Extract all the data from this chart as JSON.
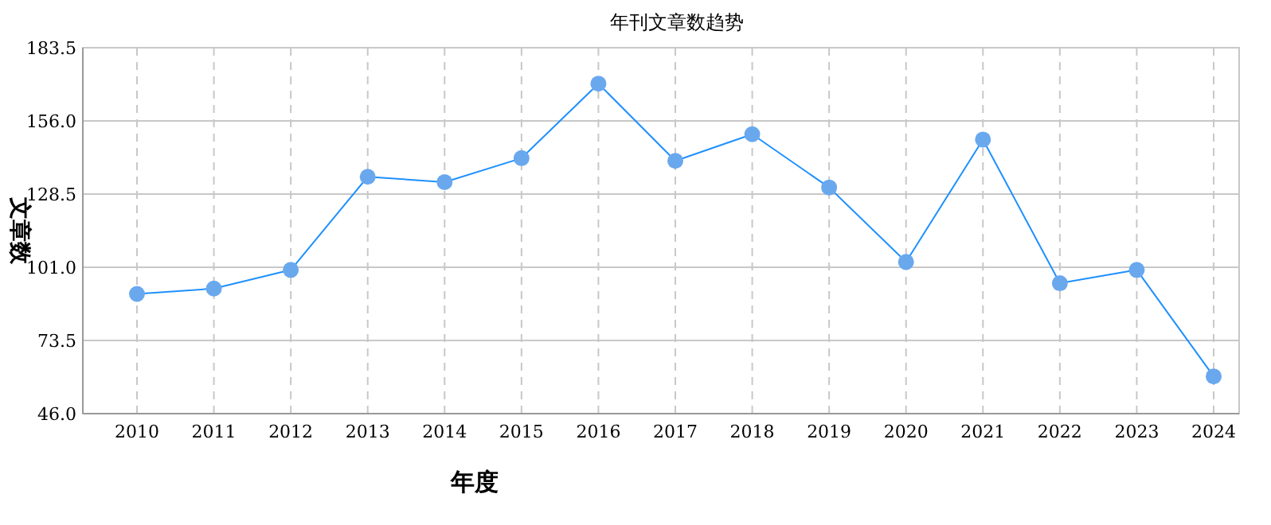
{
  "chart_data": {
    "type": "line",
    "title": "年刊文章数趋势",
    "xlabel": "年度",
    "ylabel": "文章数",
    "categories": [
      "2010",
      "2011",
      "2012",
      "2013",
      "2014",
      "2015",
      "2016",
      "2017",
      "2018",
      "2019",
      "2020",
      "2021",
      "2022",
      "2023",
      "2024"
    ],
    "series": [
      {
        "color": "#1e90ff",
        "values": [
          91,
          93,
          100,
          135,
          133,
          142,
          170,
          141,
          151,
          131,
          103,
          149,
          95,
          100,
          60
        ]
      }
    ],
    "ylim": [
      46,
      183.5
    ],
    "yticks": [
      {
        "value": 46,
        "label": "46.0"
      },
      73.5,
      {
        "value": 101,
        "label": "101.0"
      },
      128.5,
      {
        "value": 156,
        "label": "156.0"
      },
      183.5
    ],
    "grid": true,
    "marker": "circle",
    "line_style": "solid"
  }
}
